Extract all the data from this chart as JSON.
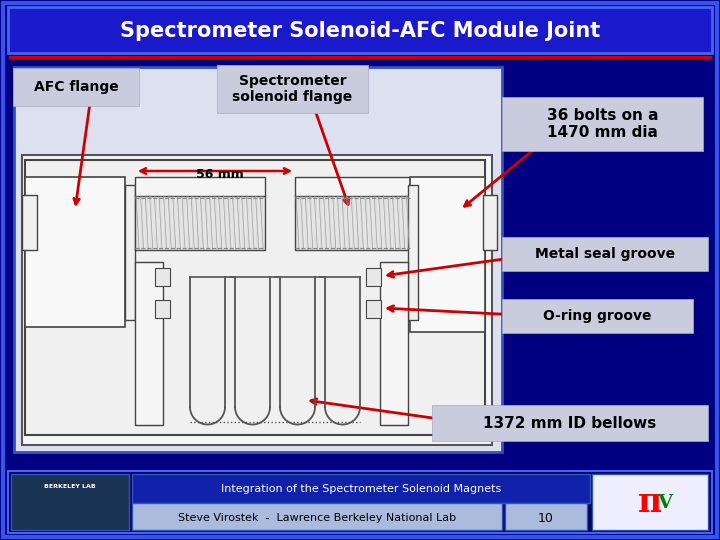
{
  "title": "Spectrometer Solenoid-AFC Module Joint",
  "bg_outer": "#000080",
  "title_color": "#FFFFFF",
  "red_line_color": "#cc0000",
  "label_bg": "#c8ccdd",
  "arrow_color": "#cc0000",
  "labels": {
    "afc_flange": "AFC flange",
    "spectrometer_flange": "Spectrometer\nsolenoid flange",
    "bolts": "36 bolts on a\n1470 mm dia",
    "metal_seal": "Metal seal groove",
    "oring": "O-ring groove",
    "bellows": "1372 mm ID bellows",
    "dimension": "56 mm"
  },
  "footer_text1": "Integration of the Spectrometer Solenoid Magnets",
  "footer_text2": "Steve Virostek  -  Lawrence Berkeley National Lab",
  "footer_page": "10"
}
